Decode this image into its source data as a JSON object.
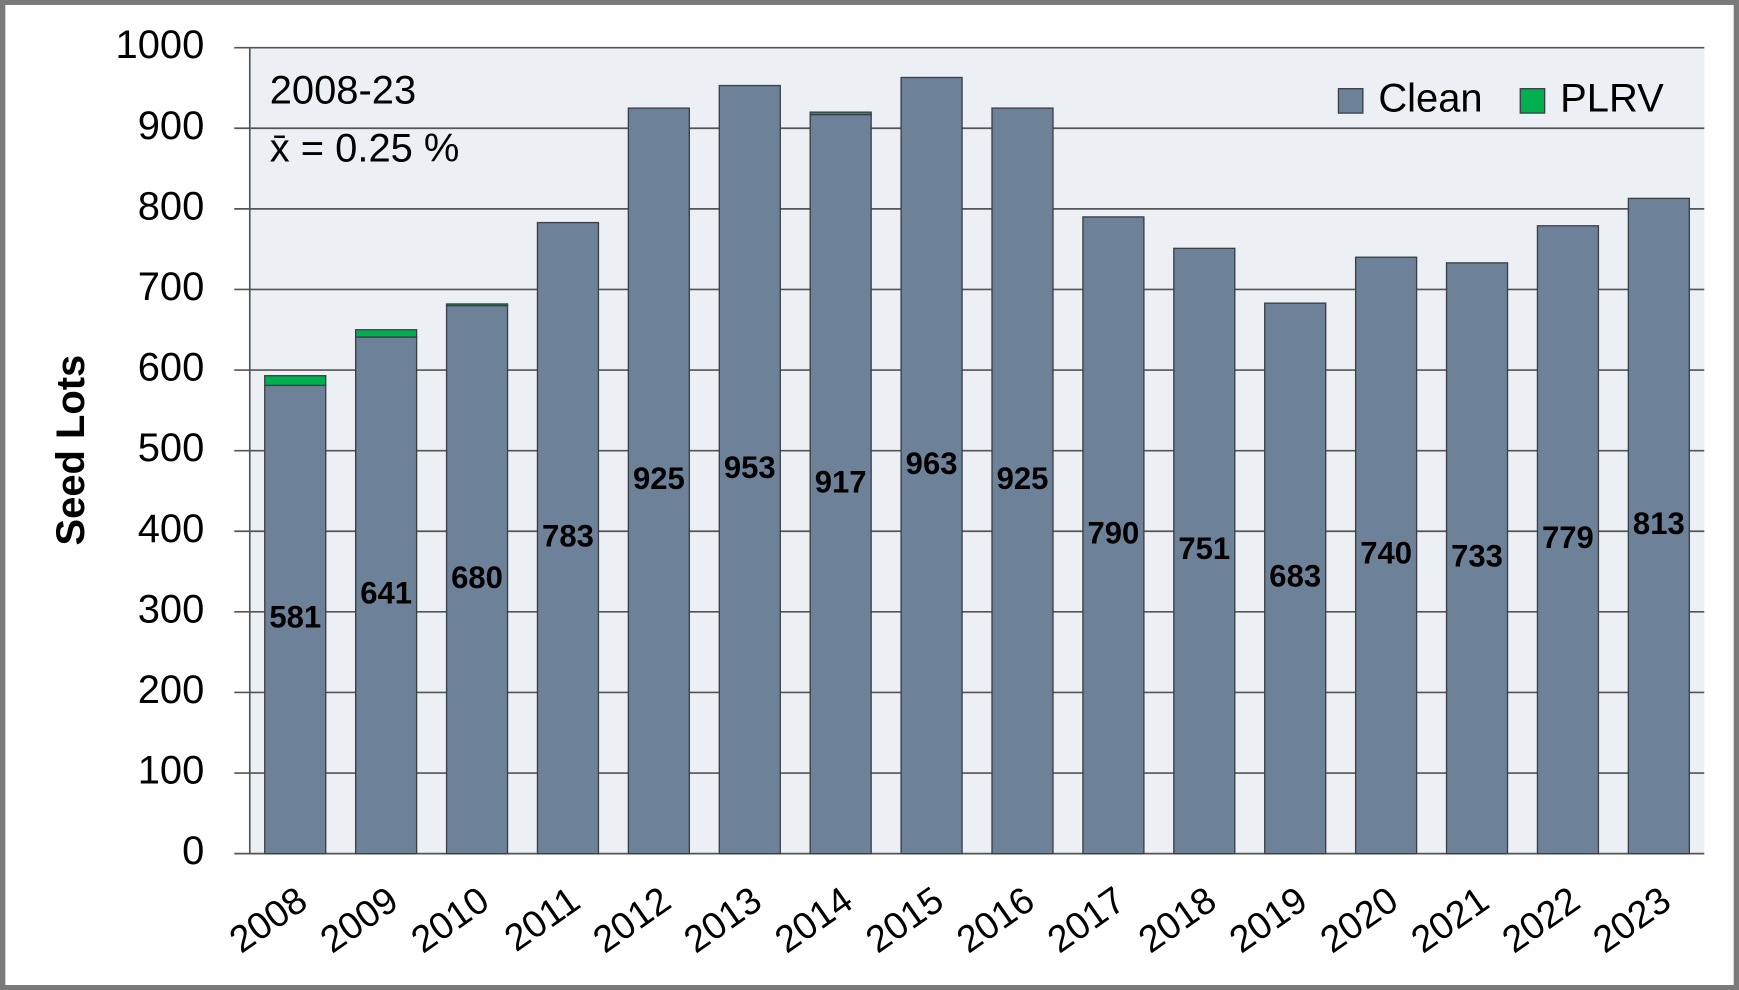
{
  "chart_data": {
    "type": "stacked_bar",
    "y_label": "Seed Lots",
    "annotations": [
      "2008-23",
      "x̄ = 0.25 %"
    ],
    "categories": [
      "2008",
      "2009",
      "2010",
      "2011",
      "2012",
      "2013",
      "2014",
      "2015",
      "2016",
      "2017",
      "2018",
      "2019",
      "2020",
      "2021",
      "2022",
      "2023"
    ],
    "series": [
      {
        "name": "Clean",
        "color": "#6d8299",
        "values": [
          581,
          641,
          680,
          783,
          925,
          953,
          917,
          963,
          925,
          790,
          751,
          683,
          740,
          733,
          779,
          813
        ]
      },
      {
        "name": "PLRV",
        "color": "#00b050",
        "values": [
          12,
          9,
          2,
          0,
          0,
          0,
          3,
          0,
          0,
          0,
          0,
          0,
          0,
          0,
          0,
          0
        ]
      }
    ],
    "ylim": [
      0,
      1000
    ],
    "yticks": [
      0,
      100,
      200,
      300,
      400,
      500,
      600,
      700,
      800,
      900,
      1000
    ],
    "grid": true,
    "legend": "upper right"
  }
}
